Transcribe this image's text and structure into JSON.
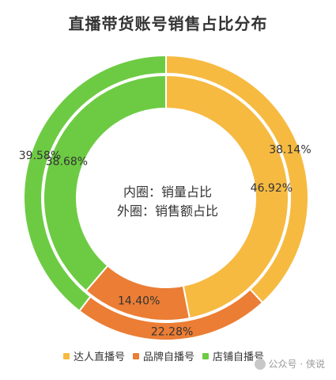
{
  "chart_data": {
    "type": "pie",
    "title": "直播带货账号销售占比分布",
    "center_text": [
      "内圈：销量占比",
      "外圈：销售额占比"
    ],
    "categories": [
      "达人直播号",
      "品牌自播号",
      "店铺自播号"
    ],
    "colors": [
      "#F6BA41",
      "#EB7D35",
      "#6DCB43"
    ],
    "series": [
      {
        "name": "外圈：销售额占比",
        "values": [
          38.14,
          22.28,
          39.58
        ],
        "labels": [
          "38.14%",
          "22.28%",
          "39.58%"
        ]
      },
      {
        "name": "内圈：销量占比",
        "values": [
          46.92,
          14.4,
          38.68
        ],
        "labels": [
          "46.92%",
          "14.40%",
          "38.68%"
        ]
      }
    ],
    "legend_position": "bottom"
  },
  "watermark": {
    "text": "公众号 · 侠说",
    "icon": "wechat-icon"
  }
}
